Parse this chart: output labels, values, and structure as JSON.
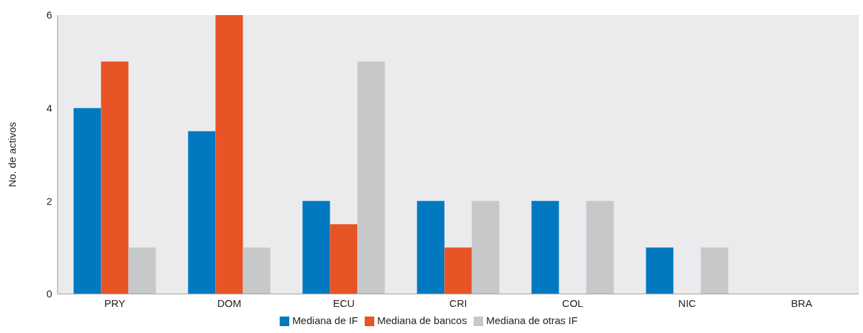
{
  "chart_data": {
    "type": "bar",
    "ylabel": "No. de activos",
    "categories": [
      "PRY",
      "DOM",
      "ECU",
      "CRI",
      "COL",
      "NIC",
      "BRA"
    ],
    "series": [
      {
        "name": "Mediana de IF",
        "color": "#0079c1",
        "values": [
          4,
          3.5,
          2,
          2,
          2,
          1,
          0
        ]
      },
      {
        "name": "Mediana de bancos",
        "color": "#e75425",
        "values": [
          5,
          6,
          1.5,
          1,
          0,
          0,
          0
        ]
      },
      {
        "name": "Mediana de otras IF",
        "color": "#c7c8ca",
        "values": [
          1,
          1,
          5,
          2,
          2,
          1,
          0
        ]
      }
    ],
    "ylim": [
      0,
      6
    ],
    "yticks": [
      0,
      2,
      4,
      6
    ],
    "grid": false,
    "legend": "bottom"
  }
}
